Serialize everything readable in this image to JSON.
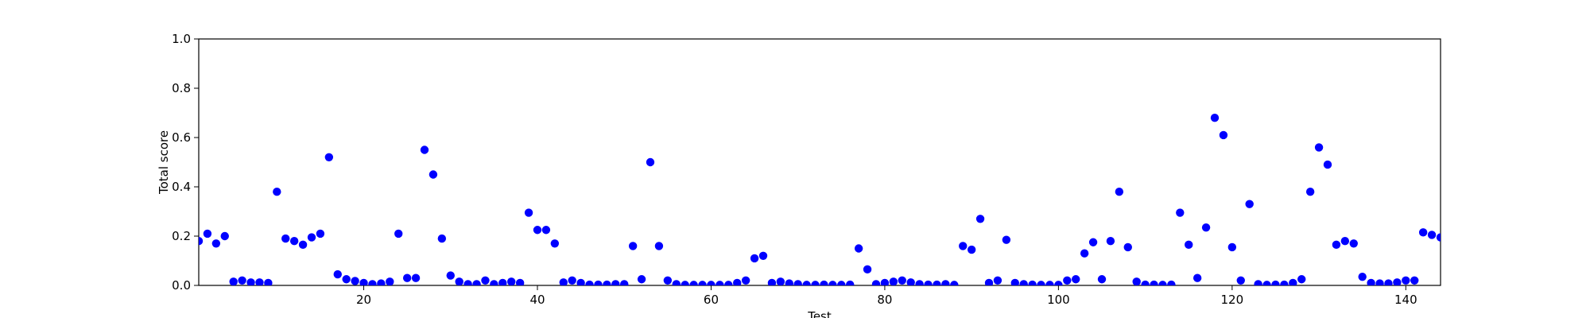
{
  "chart_data": {
    "type": "scatter",
    "title": "",
    "xlabel": "Test",
    "ylabel": "Total score",
    "xlim": [
      1,
      144
    ],
    "ylim": [
      0,
      1
    ],
    "x_ticks": [
      20,
      40,
      60,
      80,
      100,
      120,
      140
    ],
    "y_ticks": [
      0.0,
      0.2,
      0.4,
      0.6,
      0.8,
      1.0
    ],
    "x_tick_labels": [
      "20",
      "40",
      "60",
      "80",
      "100",
      "120",
      "140"
    ],
    "y_tick_labels": [
      "0.0",
      "0.2",
      "0.4",
      "0.6",
      "0.8",
      "1.0"
    ],
    "grid": false,
    "marker_color": "#0000ff",
    "series": [
      {
        "x": [
          1,
          2,
          3,
          4,
          5,
          6,
          7,
          8,
          9,
          10,
          11,
          12,
          13,
          14,
          15,
          16,
          17,
          18,
          19,
          20,
          21,
          22,
          23,
          24,
          25,
          26,
          27,
          28,
          29,
          30,
          31,
          32,
          33,
          34,
          35,
          36,
          37,
          38,
          39,
          40,
          41,
          42,
          43,
          44,
          45,
          46,
          47,
          48,
          49,
          50,
          51,
          52,
          53,
          54,
          55,
          56,
          57,
          58,
          59,
          60,
          61,
          62,
          63,
          64,
          65,
          66,
          67,
          68,
          69,
          70,
          71,
          72,
          73,
          74,
          75,
          76,
          77,
          78,
          79,
          80,
          81,
          82,
          83,
          84,
          85,
          86,
          87,
          88,
          89,
          90,
          91,
          92,
          93,
          94,
          95,
          96,
          97,
          98,
          99,
          100,
          101,
          102,
          103,
          104,
          105,
          106,
          107,
          108,
          109,
          110,
          111,
          112,
          113,
          114,
          115,
          116,
          117,
          118,
          119,
          120,
          121,
          122,
          123,
          124,
          125,
          126,
          127,
          128,
          129,
          130,
          131,
          132,
          133,
          134,
          135,
          136,
          137,
          138,
          139,
          140,
          141,
          142,
          143,
          144
        ],
        "y": [
          0.18,
          0.21,
          0.17,
          0.2,
          0.015,
          0.02,
          0.012,
          0.012,
          0.01,
          0.38,
          0.19,
          0.18,
          0.165,
          0.195,
          0.21,
          0.52,
          0.045,
          0.025,
          0.018,
          0.01,
          0.005,
          0.008,
          0.015,
          0.21,
          0.03,
          0.03,
          0.55,
          0.45,
          0.19,
          0.04,
          0.015,
          0.005,
          0.005,
          0.02,
          0.005,
          0.01,
          0.015,
          0.01,
          0.295,
          0.225,
          0.225,
          0.17,
          0.012,
          0.02,
          0.01,
          0.003,
          0.003,
          0.003,
          0.005,
          0.005,
          0.16,
          0.025,
          0.5,
          0.16,
          0.02,
          0.005,
          0.002,
          0.002,
          0.002,
          0.002,
          0.002,
          0.002,
          0.01,
          0.02,
          0.11,
          0.12,
          0.01,
          0.015,
          0.008,
          0.005,
          0.002,
          0.002,
          0.003,
          0.002,
          0.002,
          0.003,
          0.15,
          0.065,
          0.005,
          0.01,
          0.015,
          0.02,
          0.012,
          0.005,
          0.003,
          0.003,
          0.005,
          0.002,
          0.16,
          0.145,
          0.27,
          0.01,
          0.02,
          0.185,
          0.01,
          0.005,
          0.003,
          0.002,
          0.002,
          0.002,
          0.02,
          0.025,
          0.13,
          0.175,
          0.025,
          0.18,
          0.38,
          0.155,
          0.015,
          0.003,
          0.003,
          0.002,
          0.003,
          0.295,
          0.165,
          0.03,
          0.235,
          0.68,
          0.61,
          0.155,
          0.02,
          0.33,
          0.005,
          0.002,
          0.003,
          0.003,
          0.01,
          0.025,
          0.38,
          0.56,
          0.49,
          0.165,
          0.18,
          0.17,
          0.035,
          0.01,
          0.008,
          0.008,
          0.012,
          0.02,
          0.02,
          0.215,
          0.205,
          0.195
        ]
      }
    ]
  }
}
